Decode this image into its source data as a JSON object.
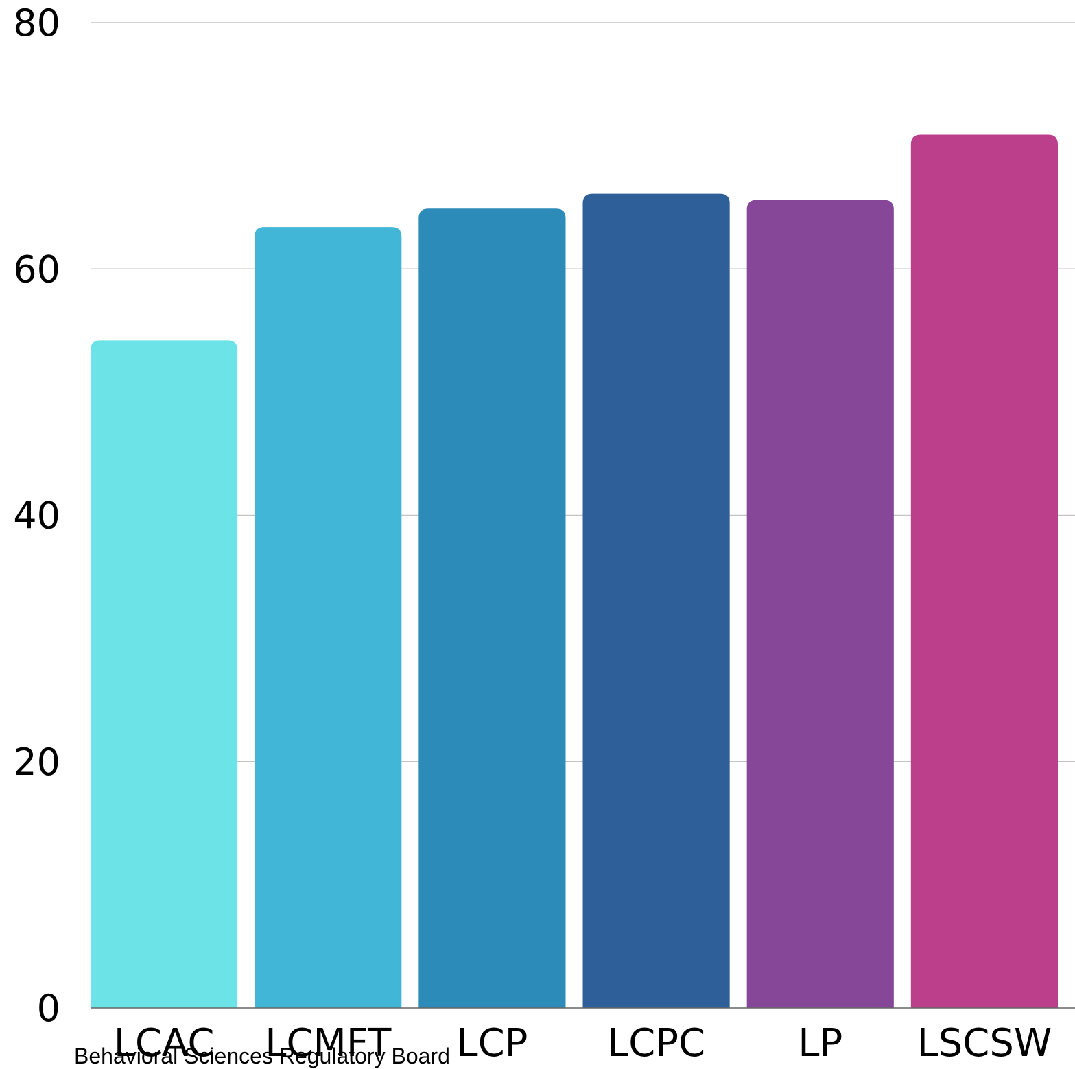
{
  "chart_data": {
    "type": "bar",
    "categories": [
      "LCAC",
      "LCMFT",
      "LCP",
      "LCPC",
      "LP",
      "LSCSW"
    ],
    "values": [
      54.2,
      63.4,
      64.9,
      66.1,
      65.6,
      70.9
    ],
    "colors": [
      "#6ce4e7",
      "#42b6d6",
      "#2d8bb9",
      "#2e5f98",
      "#874799",
      "#bb3f8b"
    ],
    "ylim": [
      0,
      80
    ],
    "yticks": [
      0,
      20,
      40,
      60,
      80
    ],
    "ytick_labels": [
      "0",
      "20",
      "40",
      "60",
      "80"
    ],
    "grid": true,
    "title": "",
    "xlabel": "",
    "ylabel": ""
  },
  "source": "Behavioral Sciences Regulatory Board"
}
